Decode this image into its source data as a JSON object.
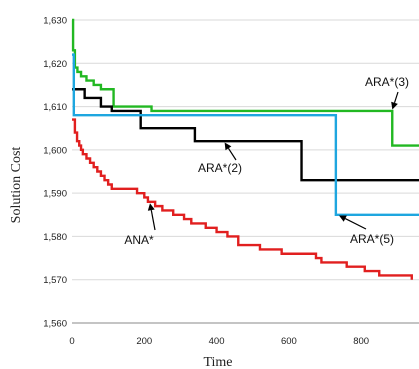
{
  "chart_data": {
    "type": "line",
    "title": "",
    "xlabel": "Time",
    "ylabel": "Solution Cost",
    "xlim": [
      0,
      960
    ],
    "ylim": [
      1560,
      1630
    ],
    "xticks": [
      0,
      200,
      400,
      600,
      800
    ],
    "yticks": [
      1560,
      1570,
      1580,
      1590,
      1600,
      1610,
      1620,
      1630
    ],
    "xtick_labels": [
      "0",
      "200",
      "400",
      "600",
      "800"
    ],
    "ytick_labels": [
      "1,560",
      "1,570",
      "1,580",
      "1,590",
      "1,600",
      "1,610",
      "1,620",
      "1,630"
    ],
    "grid": "horizontal",
    "legend": "none",
    "series": [
      {
        "name": "ARA*(3)",
        "color": "#22b822",
        "x": [
          0,
          3,
          8,
          15,
          25,
          40,
          60,
          80,
          115,
          150,
          220,
          886,
          960
        ],
        "y": [
          1630,
          1623,
          1619,
          1618,
          1617,
          1616,
          1615,
          1614,
          1610,
          1610,
          1609,
          1601,
          1601
        ]
      },
      {
        "name": "ARA*(2)",
        "color": "#000000",
        "x": [
          0,
          20,
          35,
          80,
          110,
          190,
          340,
          635,
          960
        ],
        "y": [
          1614,
          1614,
          1612,
          1610,
          1609,
          1605,
          1602,
          1593,
          1593
        ]
      },
      {
        "name": "ARA*(5)",
        "color": "#1ea6df",
        "x": [
          0,
          5,
          730,
          960
        ],
        "y": [
          1622,
          1608,
          1585,
          1585
        ]
      },
      {
        "name": "ANA*",
        "color": "#e11f1f",
        "x": [
          0,
          8,
          14,
          20,
          25,
          30,
          40,
          50,
          60,
          70,
          80,
          90,
          100,
          110,
          130,
          180,
          200,
          210,
          230,
          250,
          280,
          310,
          330,
          370,
          400,
          430,
          460,
          520,
          580,
          640,
          675,
          690,
          710,
          740,
          760,
          810,
          840,
          850,
          870,
          940
        ],
        "y": [
          1607,
          1604,
          1602,
          1601,
          1600,
          1599,
          1598,
          1597,
          1596,
          1595,
          1594,
          1593,
          1592,
          1591,
          1591,
          1590,
          1589,
          1588,
          1587,
          1586,
          1585,
          1584,
          1583,
          1582,
          1581,
          1580,
          1578,
          1577,
          1576,
          1576,
          1575,
          1574,
          1574,
          1574,
          1573,
          1572,
          1572,
          1571,
          1571,
          1570
        ]
      }
    ],
    "annotations": [
      {
        "series": "ARA*(3)",
        "text": "ARA*(3)",
        "point": [
          885,
          1609
        ]
      },
      {
        "series": "ARA*(2)",
        "text": "ARA*(2)",
        "point": [
          420,
          1602
        ]
      },
      {
        "series": "ARA*(5)",
        "text": "ARA*(5)",
        "point": [
          735,
          1585
        ]
      },
      {
        "series": "ANA*",
        "text": "ANA*",
        "point": [
          215,
          1588
        ]
      }
    ]
  }
}
